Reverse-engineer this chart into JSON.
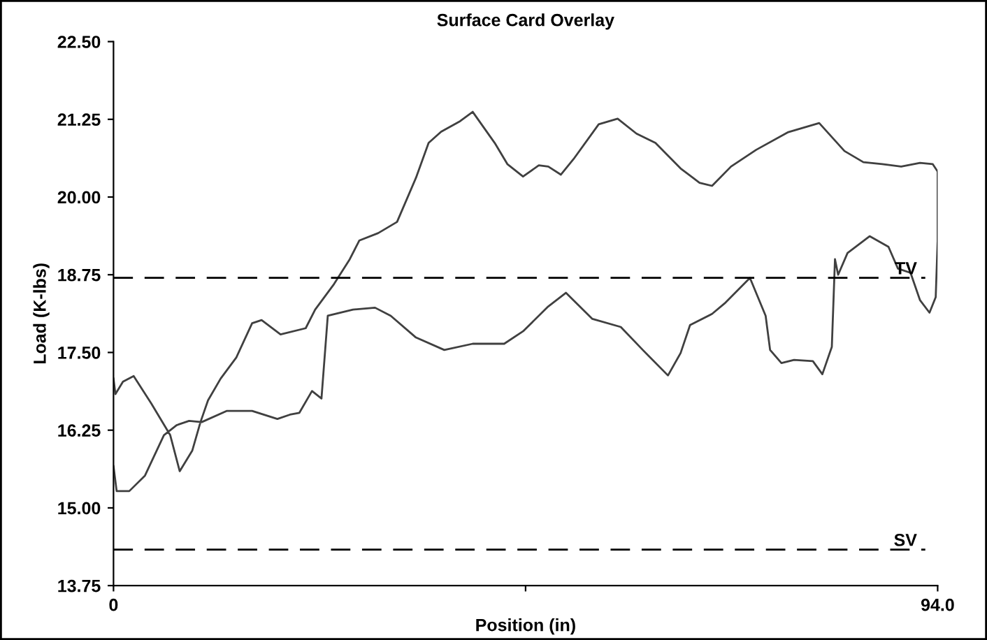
{
  "chart_data": {
    "type": "line",
    "title": "Surface Card Overlay",
    "xlabel": "Position (in)",
    "ylabel": "Load (K-lbs)",
    "x": [
      0,
      0.36,
      1.8,
      3.59,
      5.75,
      7.19,
      8.62,
      10.06,
      12.94,
      15.81,
      18.69,
      20.12,
      21.2,
      22.64,
      23.72,
      24.44,
      27.31,
      29.83,
      31.62,
      34.5,
      37.73,
      40.97,
      44.56,
      46.71,
      49.59,
      51.6,
      54.62,
      57.86,
      60.37,
      63.24,
      64.68,
      65.76,
      68.27,
      69.71,
      72.59,
      74.38,
      74.89,
      76.18,
      77.62,
      79.77,
      80.85,
      81.93,
      82.29,
      82.65,
      83.72,
      86.24,
      88.39,
      89.47,
      90.91,
      91.99,
      93.07,
      93.78,
      94.0,
      94.0,
      93.43,
      91.99,
      89.84,
      87.68,
      85.53,
      83.37,
      80.49,
      76.9,
      73.31,
      70.43,
      68.27,
      66.84,
      64.68,
      61.81,
      59.65,
      57.5,
      55.34,
      52.47,
      51.03,
      49.59,
      48.51,
      46.71,
      44.92,
      43.48,
      40.97,
      39.53,
      37.37,
      35.94,
      34.5,
      32.34,
      30.19,
      28.03,
      26.95,
      25.15,
      23.0,
      21.92,
      19.05,
      16.89,
      15.81,
      14.01,
      12.22,
      10.78,
      9.92,
      8.98,
      7.55,
      6.47,
      4.31,
      2.3,
      1.08,
      0.22,
      0
    ],
    "series": [
      {
        "color": "#404040",
        "line_style": "solid",
        "values": [
          15.67,
          15.27,
          15.27,
          15.52,
          16.17,
          16.33,
          16.4,
          16.38,
          16.56,
          16.56,
          16.43,
          16.5,
          16.53,
          16.88,
          16.76,
          18.09,
          18.19,
          18.22,
          18.09,
          17.74,
          17.54,
          17.64,
          17.64,
          17.84,
          18.24,
          18.46,
          18.04,
          17.91,
          17.54,
          17.13,
          17.49,
          17.94,
          18.12,
          18.29,
          18.7,
          18.09,
          17.54,
          17.33,
          17.38,
          17.36,
          17.15,
          17.59,
          19.0,
          18.75,
          19.1,
          19.37,
          19.2,
          18.85,
          18.78,
          18.34,
          18.14,
          18.39,
          19.3,
          20.41,
          20.53,
          20.55,
          20.49,
          20.53,
          20.56,
          20.74,
          21.19,
          21.04,
          20.76,
          20.49,
          20.18,
          20.23,
          20.46,
          20.87,
          21.02,
          21.26,
          21.17,
          20.61,
          20.36,
          20.49,
          20.51,
          20.33,
          20.53,
          20.87,
          21.37,
          21.22,
          21.05,
          20.87,
          20.31,
          19.6,
          19.42,
          19.3,
          19.0,
          18.6,
          18.19,
          17.89,
          17.79,
          18.02,
          17.97,
          17.42,
          17.08,
          16.73,
          16.38,
          15.92,
          15.59,
          16.17,
          16.68,
          17.12,
          17.03,
          16.83,
          17.08
        ]
      }
    ],
    "xlim": [
      0,
      94.0
    ],
    "xticks": [
      0,
      {
        "value": 47,
        "label": null
      },
      {
        "value": 94.0,
        "label": "94.0"
      }
    ],
    "ylim": [
      13.75,
      22.5
    ],
    "yticks": [
      {
        "value": 13.75,
        "label": "13.75"
      },
      {
        "value": 15.0,
        "label": "15.00"
      },
      {
        "value": 16.25,
        "label": "16.25"
      },
      {
        "value": 17.5,
        "label": "17.50"
      },
      {
        "value": 18.75,
        "label": "18.75"
      },
      {
        "value": 20.0,
        "label": "20.00"
      },
      {
        "value": 21.25,
        "label": "21.25"
      },
      {
        "value": 22.5,
        "label": "22.50"
      }
    ],
    "ref_lines": [
      {
        "axis": "y",
        "value": 18.7,
        "label": "TV",
        "color": "#000000",
        "line_style": "dashed"
      },
      {
        "axis": "y",
        "value": 14.33,
        "label": "SV",
        "color": "#000000",
        "line_style": "dashed"
      }
    ],
    "grid": false,
    "legend": false,
    "marker": "none"
  }
}
